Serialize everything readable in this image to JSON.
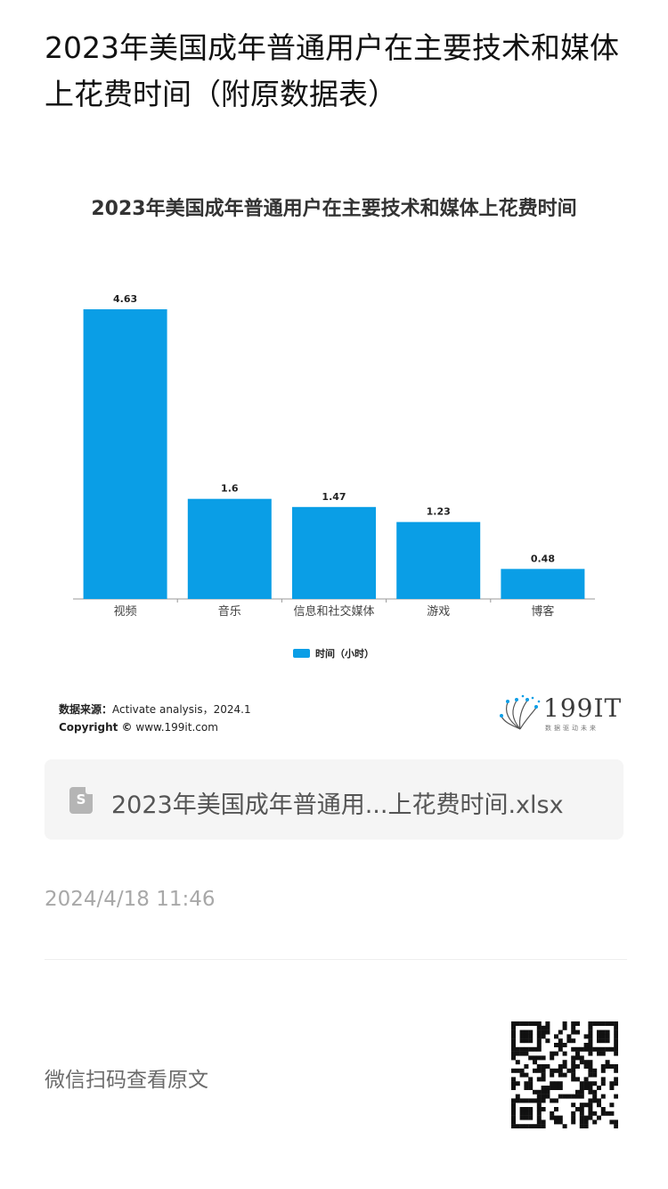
{
  "article": {
    "title": "2023年美国成年普通用户在主要技术和媒体上花费时间（附原数据表）"
  },
  "chart_data": {
    "type": "bar",
    "title": "2023年美国成年普通用户在主要技术和媒体上花费时间",
    "categories": [
      "视频",
      "音乐",
      "信息和社交媒体",
      "游戏",
      "博客"
    ],
    "series": [
      {
        "name": "时间（小时）",
        "values": [
          4.63,
          1.6,
          1.47,
          1.23,
          0.48
        ],
        "color": "#0a9ee6"
      }
    ],
    "value_labels": [
      "4.63",
      "1.6",
      "1.47",
      "1.23",
      "0.48"
    ],
    "ylim": [
      0,
      5
    ],
    "grid": false,
    "legend": "bottom-center",
    "source_label": "数据来源：",
    "source_text": "Activate analysis，2024.1",
    "copyright_label": "Copyright ©",
    "copyright_text": "www.199it.com"
  },
  "brand": {
    "name": "199IT",
    "tagline": "数据驱动未来"
  },
  "attachment": {
    "icon": "spreadsheet-file-icon",
    "icon_letter": "S",
    "file_name": "2023年美国成年普通用...上花费时间.xlsx"
  },
  "post": {
    "date": "2024/4/18 11:46"
  },
  "footer": {
    "scan_text": "微信扫码查看原文",
    "qr_icon": "qr-code-icon"
  }
}
